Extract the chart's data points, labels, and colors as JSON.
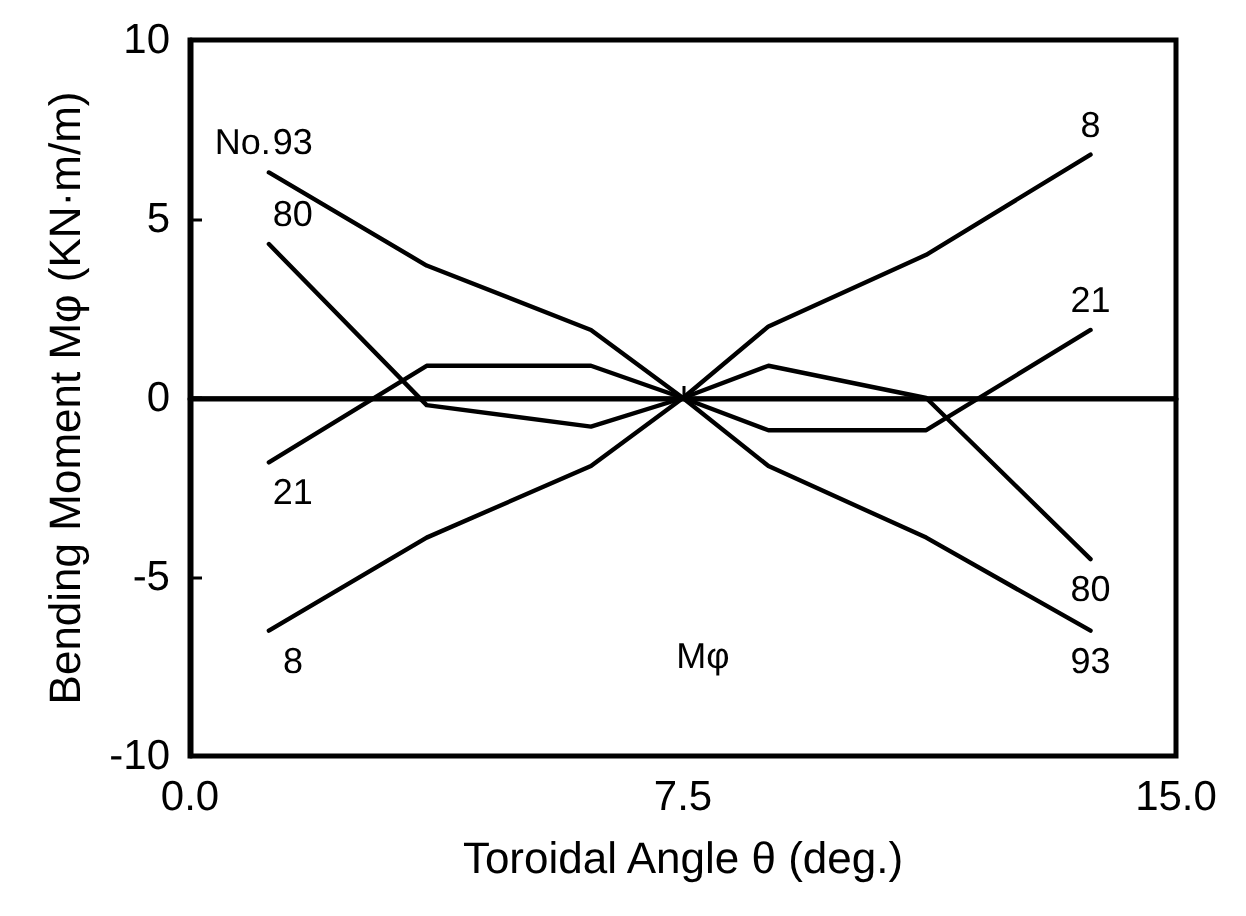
{
  "chart_data": {
    "type": "line",
    "xlabel": "Toroidal Angle θ (deg.)",
    "ylabel": "Bending Moment Mφ (KN·m/m)",
    "xlim": [
      0,
      15
    ],
    "xticks": [
      {
        "value": 0,
        "label": "0.0"
      },
      {
        "value": 7.5,
        "label": "7.5"
      },
      {
        "value": 15,
        "label": "15.0"
      }
    ],
    "ylim": [
      -10,
      10
    ],
    "yticks": [
      -10,
      -5,
      0,
      5,
      10
    ],
    "grid": false,
    "marker": "none",
    "line_style": "solid",
    "x": [
      1.2,
      3.6,
      6.1,
      7.5,
      8.8,
      11.2,
      13.7
    ],
    "series": [
      {
        "name": "8",
        "color": "#000000",
        "values": [
          -6.5,
          -3.9,
          -1.9,
          0,
          2.0,
          4.0,
          6.8
        ]
      },
      {
        "name": "93",
        "color": "#000000",
        "values": [
          6.3,
          3.7,
          1.9,
          0,
          -1.9,
          -3.9,
          -6.5
        ]
      },
      {
        "name": "80",
        "color": "#000000",
        "values": [
          4.3,
          -0.2,
          -0.8,
          0,
          0.9,
          0,
          -4.5
        ]
      },
      {
        "name": "21",
        "color": "#000000",
        "values": [
          -1.8,
          0.9,
          0.9,
          0,
          -0.9,
          -0.9,
          1.9
        ]
      }
    ],
    "ref_lines": [
      {
        "axis": "y",
        "value": 0,
        "color": "#000000"
      }
    ],
    "annotations": [
      "No.",
      "Mφ"
    ]
  }
}
